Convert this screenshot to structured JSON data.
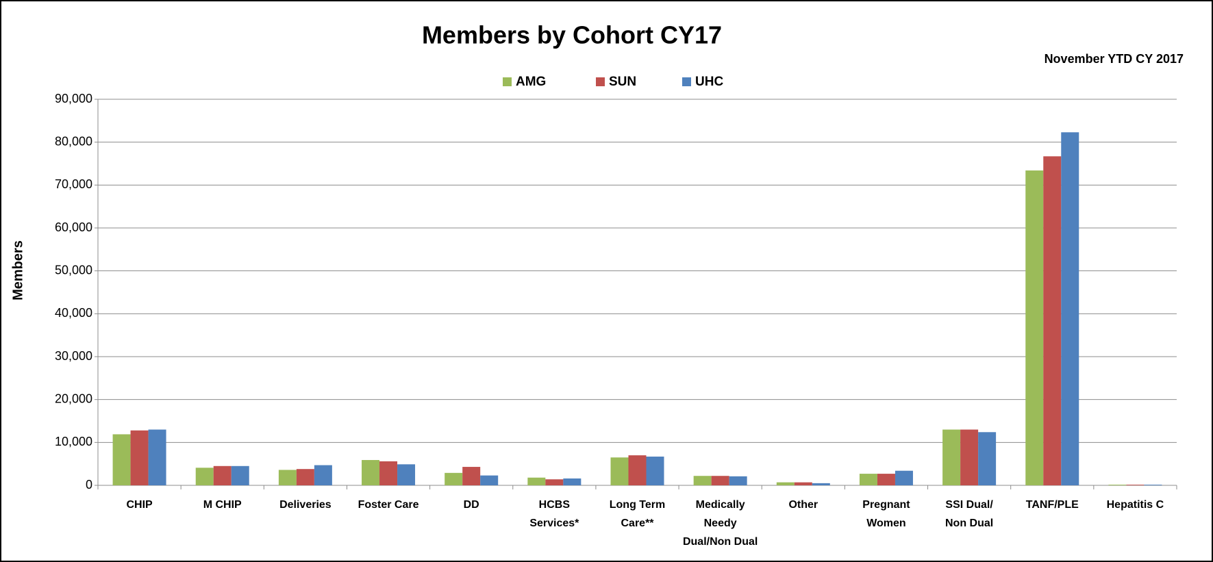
{
  "chart_data": {
    "type": "bar",
    "title": "Members by Cohort CY17",
    "subtitle": "November YTD CY 2017",
    "y_label": "Members",
    "categories": [
      "CHIP",
      "M CHIP",
      "Deliveries",
      "Foster Care",
      "DD",
      "HCBS\nServices*",
      "Long Term\nCare**",
      "Medically\nNeedy\nDual/Non Dual",
      "Other",
      "Pregnant\nWomen",
      "SSI Dual/\nNon Dual",
      "TANF/PLE",
      "Hepatitis C"
    ],
    "series": [
      {
        "name": "AMG",
        "color": "#9bbb59",
        "values": [
          11900,
          4100,
          3600,
          5900,
          2900,
          1800,
          6500,
          2200,
          700,
          2700,
          13000,
          73400,
          150
        ]
      },
      {
        "name": "SUN",
        "color": "#c0504d",
        "values": [
          12800,
          4500,
          3800,
          5600,
          4300,
          1400,
          7000,
          2200,
          700,
          2700,
          13000,
          76700,
          150
        ]
      },
      {
        "name": "UHC",
        "color": "#4f81bd",
        "values": [
          13000,
          4500,
          4700,
          4900,
          2300,
          1600,
          6700,
          2100,
          500,
          3400,
          12400,
          82300,
          150
        ]
      }
    ],
    "ylim": [
      0,
      90000
    ],
    "yticks": [
      0,
      {
        "value": 10000,
        "label": "10,000"
      },
      {
        "value": 20000,
        "label": "20,000"
      },
      {
        "value": 30000,
        "label": "30,000"
      },
      {
        "value": 40000,
        "label": "40,000"
      },
      {
        "value": 50000,
        "label": "50,000"
      },
      {
        "value": 60000,
        "label": "60,000"
      },
      {
        "value": 70000,
        "label": "70,000"
      },
      {
        "value": 80000,
        "label": "80,000"
      },
      {
        "value": 90000,
        "label": "90,000"
      }
    ],
    "grid": true,
    "legend": "top"
  }
}
